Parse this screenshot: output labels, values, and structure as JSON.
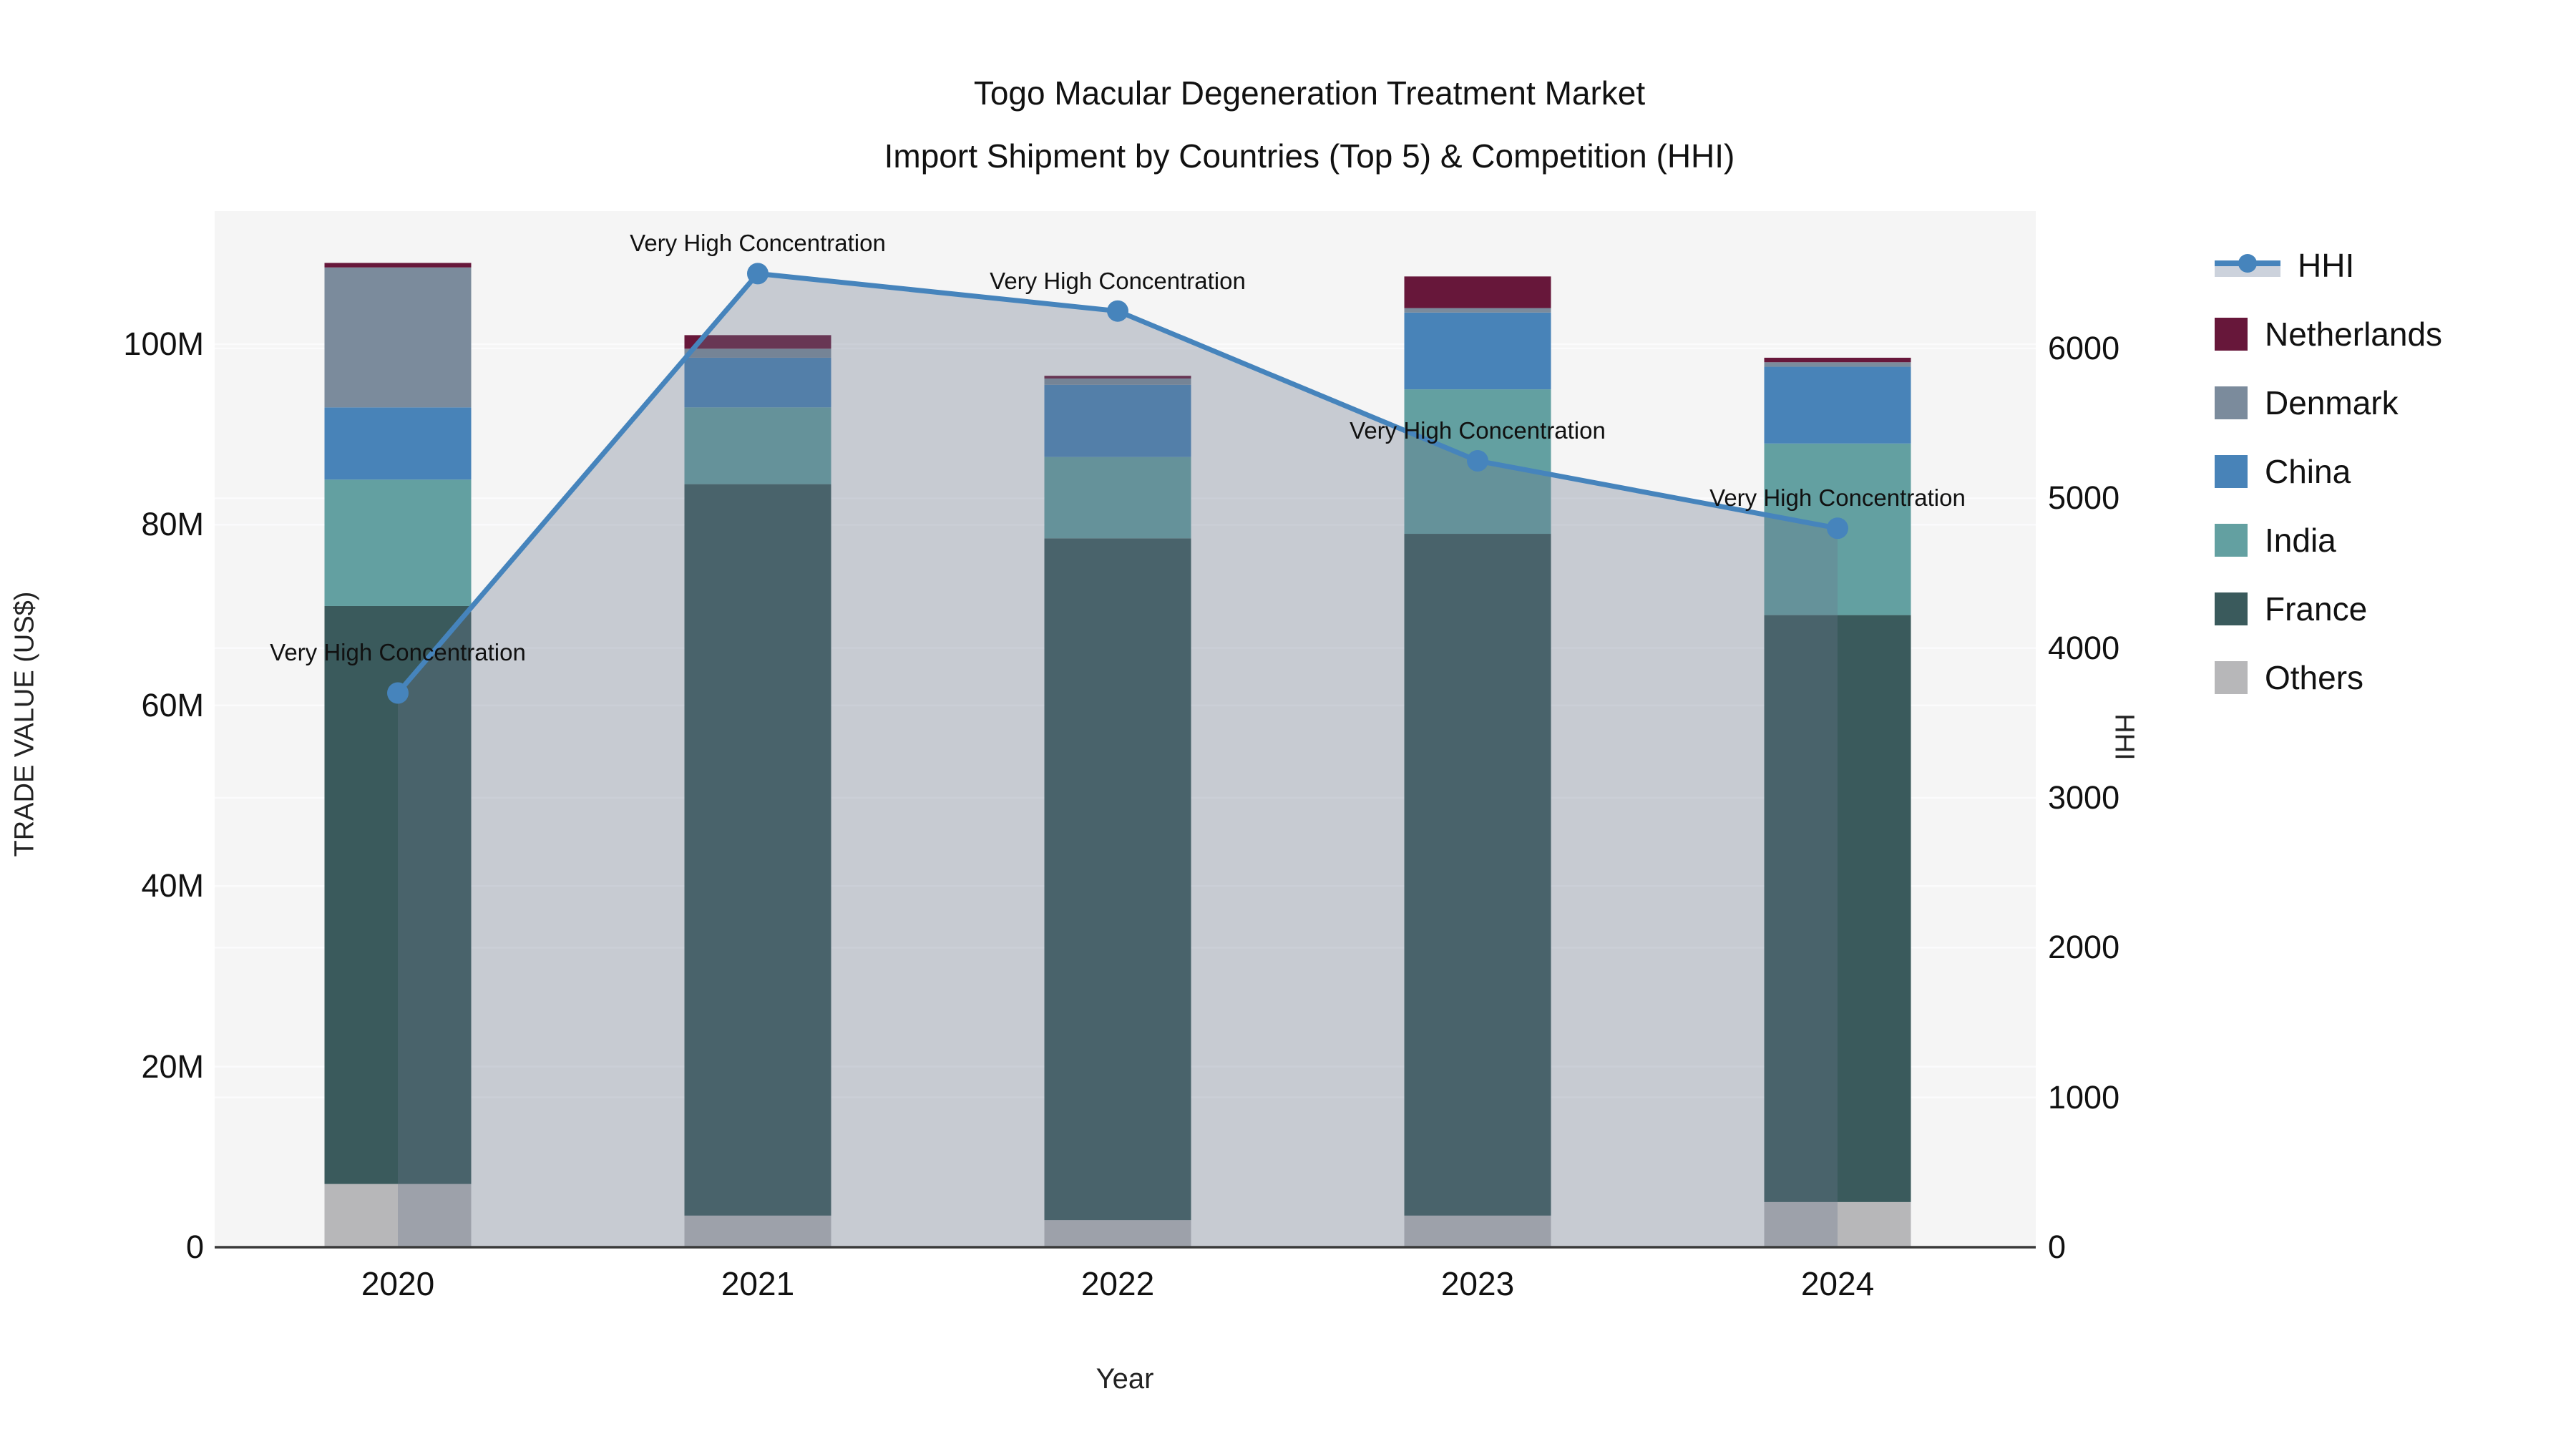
{
  "title": {
    "line1": "Togo Macular Degeneration Treatment Market",
    "line2": "Import Shipment by Countries (Top 5) & Competition (HHI)"
  },
  "colors": {
    "netherlands": "#67173A",
    "denmark": "#7B8B9C",
    "china": "#4883B8",
    "india": "#63A0A1",
    "france": "#3A5A5C",
    "others": "#B7B7B9",
    "hhi_line": "#4684BC",
    "hhi_area_fill": "rgba(105,118,140,0.33)",
    "plot_background": "#F5F5F5",
    "gridline": "#FBFBFC",
    "axis_line": "#3A3A3A"
  },
  "chart_data": {
    "type": "bar",
    "subtype": "stacked-bars-with-line-overlay",
    "title": "Togo Macular Degeneration Treatment Market — Import Shipment by Countries (Top 5) & Competition (HHI)",
    "categories": [
      "2020",
      "2021",
      "2022",
      "2023",
      "2024"
    ],
    "value_unit": "million US$",
    "series": [
      {
        "name": "Others",
        "color": "#B7B7B9",
        "values": [
          7.0,
          3.5,
          3.0,
          3.5,
          5.0
        ]
      },
      {
        "name": "France",
        "color": "#3A5A5C",
        "values": [
          64.0,
          81.0,
          75.5,
          75.5,
          65.0
        ]
      },
      {
        "name": "India",
        "color": "#63A0A1",
        "values": [
          14.0,
          8.5,
          9.0,
          16.0,
          19.0
        ]
      },
      {
        "name": "China",
        "color": "#4883B8",
        "values": [
          8.0,
          5.5,
          8.0,
          8.5,
          8.5
        ]
      },
      {
        "name": "Denmark",
        "color": "#7B8B9C",
        "values": [
          15.5,
          1.0,
          0.7,
          0.5,
          0.5
        ]
      },
      {
        "name": "Netherlands",
        "color": "#67173A",
        "values": [
          0.5,
          1.5,
          0.3,
          3.5,
          0.5
        ]
      }
    ],
    "line": {
      "name": "HHI",
      "color": "#4684BC",
      "area_fill": "rgba(105,118,140,0.33)",
      "values": [
        3700,
        6500,
        6250,
        5250,
        4800
      ]
    },
    "annotations": [
      {
        "text": "Very High Concentration",
        "category": "2020"
      },
      {
        "text": "Very High Concentration",
        "category": "2021"
      },
      {
        "text": "Very High Concentration",
        "category": "2022"
      },
      {
        "text": "Very High Concentration",
        "category": "2023"
      },
      {
        "text": "Very High Concentration",
        "category": "2024"
      }
    ],
    "x_label": "Year",
    "y_left": {
      "label": "TRADE VALUE (US$)",
      "tick_labels": [
        "0",
        "20M",
        "40M",
        "60M",
        "80M",
        "100M"
      ],
      "tick_values": [
        0,
        20,
        40,
        60,
        80,
        100
      ],
      "range": [
        0,
        114.7
      ]
    },
    "y_right": {
      "label": "HHI",
      "tick_labels": [
        "0",
        "1000",
        "2000",
        "3000",
        "4000",
        "5000",
        "6000"
      ],
      "tick_values": [
        0,
        1000,
        2000,
        3000,
        4000,
        5000,
        6000
      ],
      "range": [
        0,
        6920
      ]
    },
    "grid": true,
    "legend_position": "right"
  },
  "legend": {
    "items": [
      {
        "label": "HHI",
        "type": "line",
        "color": "#4684BC"
      },
      {
        "label": "Netherlands",
        "type": "swatch",
        "color": "#67173A"
      },
      {
        "label": "Denmark",
        "type": "swatch",
        "color": "#7B8B9C"
      },
      {
        "label": "China",
        "type": "swatch",
        "color": "#4883B8"
      },
      {
        "label": "India",
        "type": "swatch",
        "color": "#63A0A1"
      },
      {
        "label": "France",
        "type": "swatch",
        "color": "#3A5A5C"
      },
      {
        "label": "Others",
        "type": "swatch",
        "color": "#B7B7B9"
      }
    ]
  }
}
